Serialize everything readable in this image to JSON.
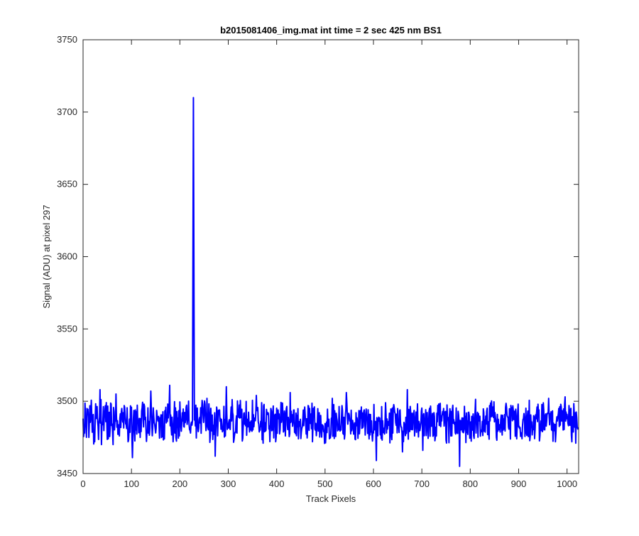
{
  "chart_data": {
    "type": "line",
    "title": "b2015081406_img.mat int time = 2 sec  425 nm BS1",
    "xlabel": "Track Pixels",
    "ylabel": "Signal (ADU) at pixel 297",
    "xlim": [
      0,
      1024
    ],
    "ylim": [
      3450,
      3750
    ],
    "xticks": [
      0,
      100,
      200,
      300,
      400,
      500,
      600,
      700,
      800,
      900,
      1000
    ],
    "yticks": [
      3450,
      3500,
      3550,
      3600,
      3650,
      3700,
      3750
    ],
    "grid": false,
    "legend": "none",
    "line_color": "#0000ff",
    "series": [
      {
        "n_points": 1024,
        "x_start": 0,
        "x_step": 1,
        "baseline": 3486,
        "noise_range": [
          3460,
          3512
        ],
        "points": [
          [
            0,
            3488
          ],
          [
            3,
            3478
          ],
          [
            8,
            3495
          ],
          [
            12,
            3475
          ],
          [
            18,
            3490
          ],
          [
            24,
            3472
          ],
          [
            30,
            3486
          ],
          [
            35,
            3508
          ],
          [
            38,
            3470
          ],
          [
            44,
            3492
          ],
          [
            52,
            3474
          ],
          [
            58,
            3498
          ],
          [
            62,
            3470
          ],
          [
            68,
            3505
          ],
          [
            75,
            3476
          ],
          [
            85,
            3497
          ],
          [
            93,
            3472
          ],
          [
            99,
            3489
          ],
          [
            101,
            3474
          ],
          [
            102,
            3461
          ],
          [
            108,
            3494
          ],
          [
            118,
            3475
          ],
          [
            126,
            3498
          ],
          [
            136,
            3486
          ],
          [
            140,
            3507
          ],
          [
            148,
            3484
          ],
          [
            160,
            3487
          ],
          [
            172,
            3485
          ],
          [
            179,
            3511
          ],
          [
            186,
            3472
          ],
          [
            190,
            3478
          ],
          [
            205,
            3492
          ],
          [
            215,
            3484
          ],
          [
            222,
            3478
          ],
          [
            226,
            3486
          ],
          [
            227,
            3598
          ],
          [
            228,
            3710
          ],
          [
            229,
            3598
          ],
          [
            230,
            3487
          ],
          [
            238,
            3479
          ],
          [
            245,
            3494
          ],
          [
            256,
            3502
          ],
          [
            263,
            3477
          ],
          [
            273,
            3462
          ],
          [
            282,
            3494
          ],
          [
            290,
            3480
          ],
          [
            296,
            3510
          ],
          [
            305,
            3490
          ],
          [
            318,
            3478
          ],
          [
            333,
            3492
          ],
          [
            348,
            3480
          ],
          [
            358,
            3504
          ],
          [
            372,
            3471
          ],
          [
            388,
            3495
          ],
          [
            398,
            3472
          ],
          [
            408,
            3488
          ],
          [
            418,
            3476
          ],
          [
            428,
            3506
          ],
          [
            445,
            3474
          ],
          [
            458,
            3496
          ],
          [
            472,
            3481
          ],
          [
            488,
            3492
          ],
          [
            502,
            3478
          ],
          [
            515,
            3502
          ],
          [
            530,
            3484
          ],
          [
            544,
            3506
          ],
          [
            560,
            3482
          ],
          [
            575,
            3496
          ],
          [
            590,
            3480
          ],
          [
            604,
            3486
          ],
          [
            606,
            3459
          ],
          [
            610,
            3488
          ],
          [
            625,
            3499
          ],
          [
            640,
            3478
          ],
          [
            655,
            3494
          ],
          [
            660,
            3465
          ],
          [
            670,
            3508
          ],
          [
            685,
            3476
          ],
          [
            695,
            3484
          ],
          [
            702,
            3466
          ],
          [
            715,
            3493
          ],
          [
            730,
            3476
          ],
          [
            745,
            3495
          ],
          [
            760,
            3476
          ],
          [
            775,
            3493
          ],
          [
            778,
            3455
          ],
          [
            782,
            3485
          ],
          [
            798,
            3490
          ],
          [
            812,
            3478
          ],
          [
            825,
            3486
          ],
          [
            840,
            3497
          ],
          [
            855,
            3473
          ],
          [
            868,
            3480
          ],
          [
            882,
            3491
          ],
          [
            896,
            3474
          ],
          [
            910,
            3488
          ],
          [
            924,
            3476
          ],
          [
            938,
            3496
          ],
          [
            950,
            3480
          ],
          [
            962,
            3502
          ],
          [
            975,
            3484
          ],
          [
            988,
            3496
          ],
          [
            996,
            3503
          ],
          [
            1004,
            3497
          ],
          [
            1012,
            3486
          ],
          [
            1018,
            3471
          ],
          [
            1023,
            3482
          ]
        ]
      }
    ]
  }
}
